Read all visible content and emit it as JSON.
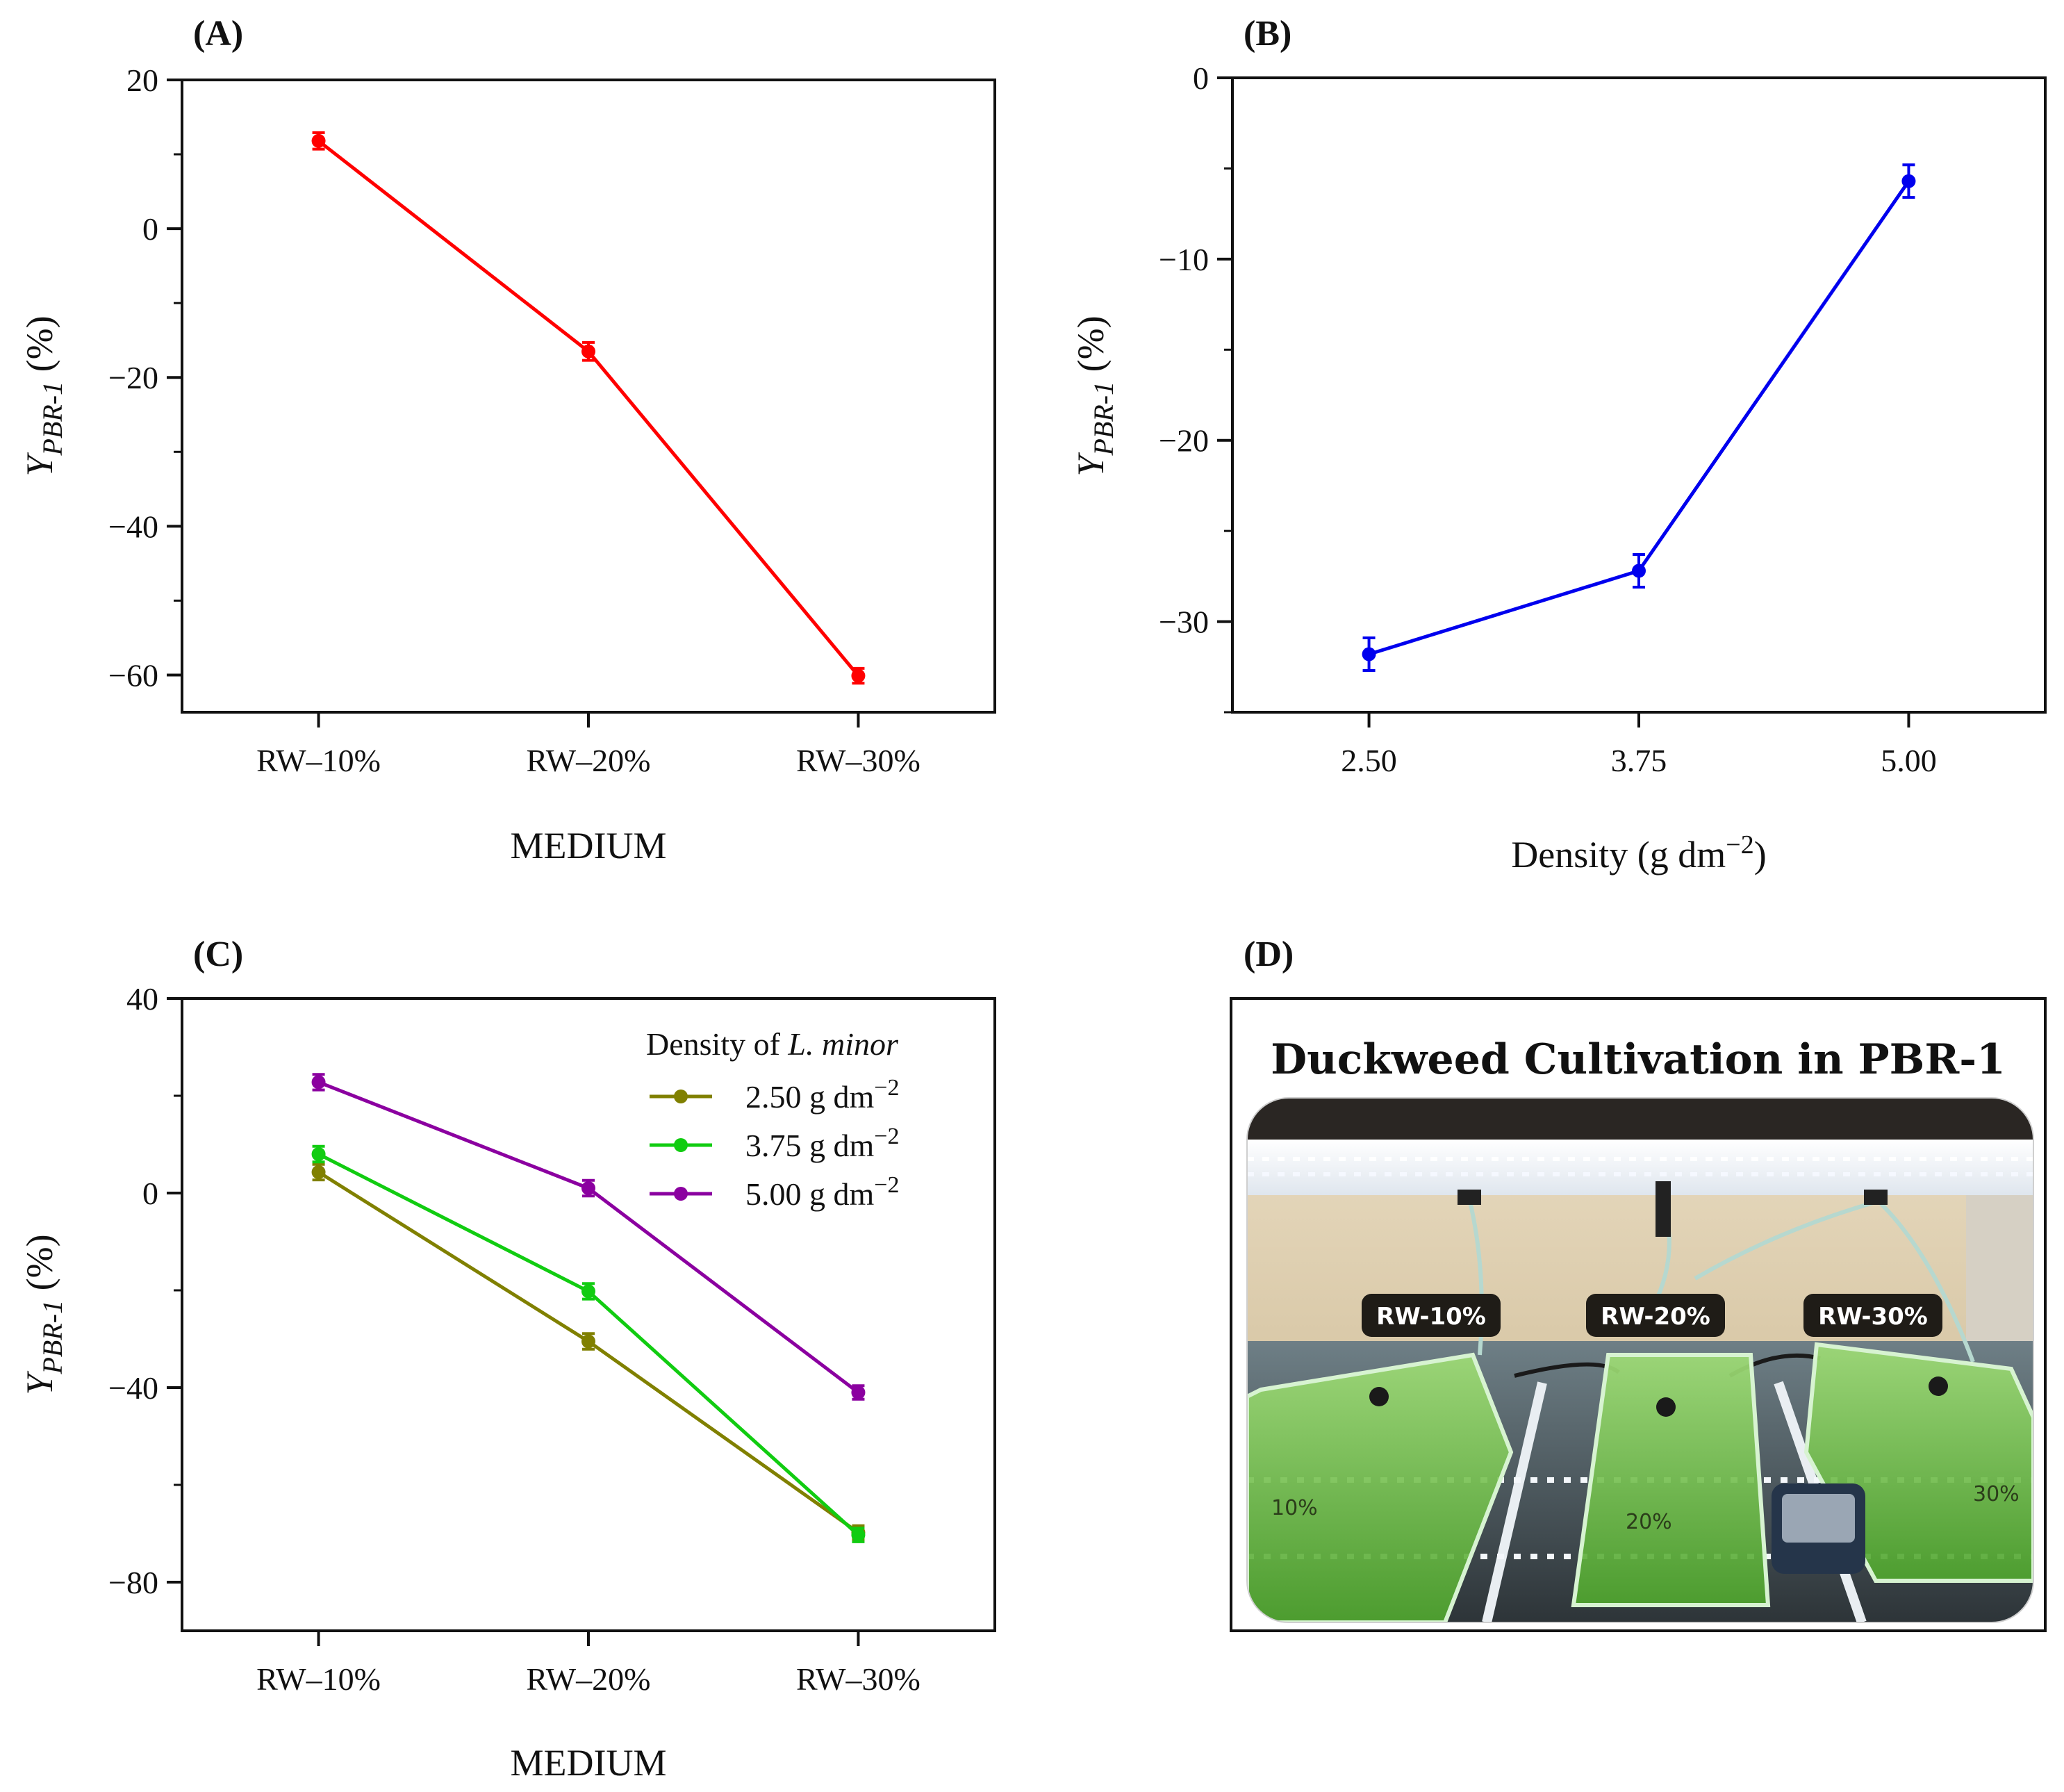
{
  "chart_data": [
    {
      "panel": "(A)",
      "type": "line",
      "title": "",
      "xlabel": "MEDIUM",
      "ylabel_main": "Y",
      "ylabel_sub": "PBR-1",
      "ylabel_unit": "(%)",
      "categories": [
        "RW–10%",
        "RW–20%",
        "RW–30%"
      ],
      "ylim": [
        -65,
        20
      ],
      "yticks": [
        20,
        0,
        -20,
        -40,
        -60
      ],
      "yticklabels": [
        "20",
        "0",
        "−20",
        "−40",
        "−60"
      ],
      "grid": false,
      "series": [
        {
          "name": "Y PBR-1",
          "color": "#ff0000",
          "values": [
            11.8,
            -16.5,
            -60.1
          ],
          "errors": [
            1.1,
            1.2,
            1.0
          ]
        }
      ]
    },
    {
      "panel": "(B)",
      "type": "line",
      "title": "",
      "xlabel_main": "Density (g dm",
      "xlabel_sup": "−2",
      "xlabel_end": ")",
      "ylabel_main": "Y",
      "ylabel_sub": "PBR-1",
      "ylabel_unit": "(%)",
      "categories": [
        "2.50",
        "3.75",
        "5.00"
      ],
      "ylim": [
        -35,
        0
      ],
      "yticks": [
        0,
        -10,
        -20,
        -30
      ],
      "yticklabels": [
        "0",
        "−10",
        "−20",
        "−30"
      ],
      "grid": false,
      "series": [
        {
          "name": "Y PBR-1",
          "color": "#0000ee",
          "values": [
            -31.8,
            -27.2,
            -5.7
          ],
          "errors": [
            0.9,
            0.9,
            0.9
          ]
        }
      ]
    },
    {
      "panel": "(C)",
      "type": "line",
      "title": "",
      "xlabel": "MEDIUM",
      "ylabel_main": "Y",
      "ylabel_sub": "PBR-1",
      "ylabel_unit": "(%)",
      "categories": [
        "RW–10%",
        "RW–20%",
        "RW–30%"
      ],
      "ylim": [
        -90,
        40
      ],
      "yticks": [
        40,
        0,
        -40,
        -80
      ],
      "yticklabels": [
        "40",
        "0",
        "−40",
        "−80"
      ],
      "grid": false,
      "legend_title_main": "Density of ",
      "legend_title_italic": "L. minor",
      "legend_position": "top-right",
      "series": [
        {
          "name": "2.50 g dm",
          "name_sup": "−2",
          "color": "#808000",
          "values": [
            4.3,
            -30.5,
            -69.8
          ],
          "errors": [
            1.6,
            1.6,
            1.4
          ]
        },
        {
          "name": "3.75 g dm",
          "name_sup": "−2",
          "color": "#11cc11",
          "values": [
            8.0,
            -20.2,
            -70.3
          ],
          "errors": [
            1.6,
            1.6,
            1.4
          ]
        },
        {
          "name": "5.00 g dm",
          "name_sup": "−2",
          "color": "#8b00a0",
          "values": [
            22.8,
            1.0,
            -41.0
          ],
          "errors": [
            1.6,
            1.6,
            1.4
          ]
        }
      ]
    }
  ],
  "panel_d": {
    "panel": "(D)",
    "title": "Duckweed Cultivation in PBR-1",
    "tags": [
      "RW-10%",
      "RW-20%",
      "RW-30%"
    ],
    "jar_marks": [
      "10%",
      "20%",
      "30%"
    ]
  },
  "colors": {
    "axis": "#111111",
    "bg": "#ffffff"
  }
}
